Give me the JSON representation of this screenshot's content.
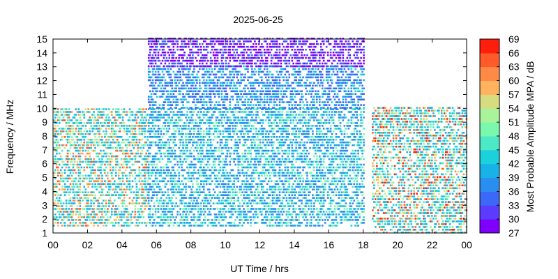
{
  "chart_data": {
    "type": "heatmap",
    "title": "2025-06-25",
    "xlabel": "UT Time / hrs",
    "ylabel": "Frequency / MHz",
    "xlim": [
      0,
      24
    ],
    "ylim": [
      1,
      15
    ],
    "x_ticks": [
      "00",
      "02",
      "04",
      "06",
      "08",
      "10",
      "12",
      "14",
      "16",
      "18",
      "20",
      "22",
      "00"
    ],
    "y_ticks": [
      "1",
      "2",
      "3",
      "4",
      "5",
      "6",
      "7",
      "8",
      "9",
      "10",
      "11",
      "12",
      "13",
      "14",
      "15"
    ],
    "colorbar": {
      "label": "Most Probable Amplitude MPA / dB",
      "range": [
        27,
        69
      ],
      "ticks": [
        "27",
        "30",
        "33",
        "36",
        "39",
        "42",
        "45",
        "48",
        "51",
        "54",
        "57",
        "60",
        "63",
        "66",
        "69"
      ],
      "colors": [
        "#7f00ff",
        "#5b3cff",
        "#3b68f7",
        "#2a8ef0",
        "#18b2e6",
        "#1bd1dc",
        "#4be9c6",
        "#7af8ad",
        "#a9f39a",
        "#d8dc80",
        "#ffb35f",
        "#ff8a45",
        "#ff5a2a",
        "#ff1e0c"
      ]
    },
    "regions": [
      {
        "x": [
          0,
          5.5
        ],
        "y": [
          1.5,
          10
        ],
        "mpa_range": [
          39,
          66
        ]
      },
      {
        "x": [
          5.5,
          18
        ],
        "y": [
          1.5,
          10
        ],
        "mpa_range": [
          36,
          51
        ]
      },
      {
        "x": [
          5.5,
          18
        ],
        "y": [
          10,
          13
        ],
        "mpa_range": [
          33,
          45
        ]
      },
      {
        "x": [
          5.5,
          18
        ],
        "y": [
          13,
          15
        ],
        "mpa_range": [
          27,
          36
        ]
      },
      {
        "x": [
          18.5,
          24
        ],
        "y": [
          1,
          10
        ],
        "mpa_range": [
          39,
          69
        ]
      }
    ],
    "grid": false
  }
}
